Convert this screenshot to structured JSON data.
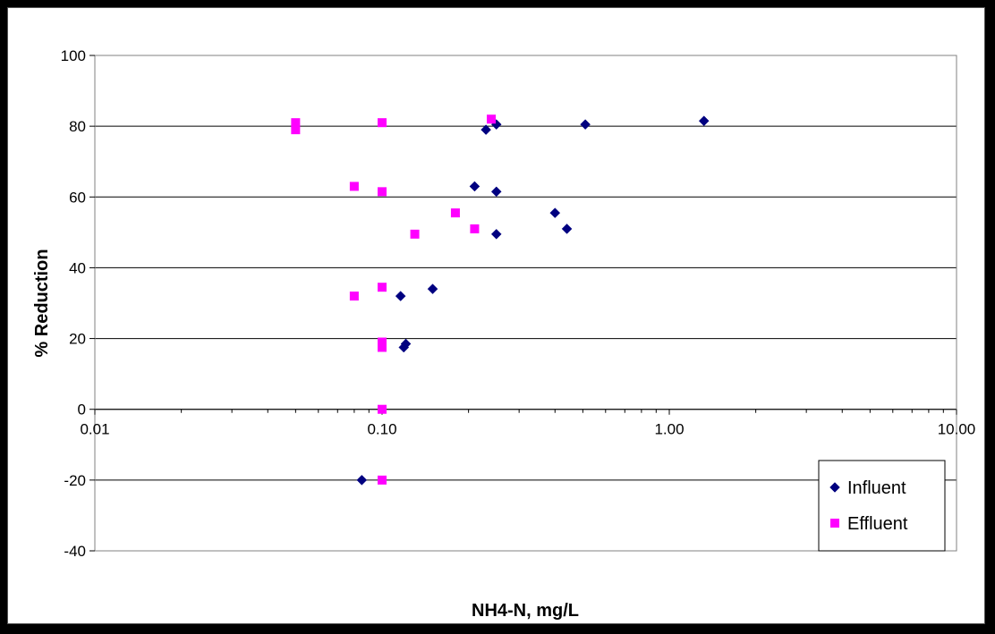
{
  "chart_data": {
    "type": "scatter",
    "xlabel": "NH4-N, mg/L",
    "ylabel": "% Reduction",
    "x_scale": "log",
    "xlim": [
      0.01,
      10
    ],
    "ylim": [
      -40,
      100
    ],
    "x_ticks": [
      0.01,
      0.1,
      1,
      10
    ],
    "x_tick_labels": [
      "0.01",
      "0.10",
      "1.00",
      "10.00"
    ],
    "y_ticks": [
      100,
      80,
      60,
      40,
      20,
      0,
      -20,
      -40
    ],
    "y_tick_labels": [
      "100",
      "80",
      "60",
      "40",
      "20",
      "0",
      "-20",
      "-40"
    ],
    "grid": "horizontal",
    "legend_position": "bottom-right",
    "series": [
      {
        "name": "Influent",
        "marker": "diamond",
        "color": "#000080",
        "points": [
          [
            1.32,
            81.5
          ],
          [
            0.51,
            80.5
          ],
          [
            0.25,
            80.5
          ],
          [
            0.23,
            79
          ],
          [
            0.21,
            63
          ],
          [
            0.25,
            61.5
          ],
          [
            0.4,
            55.5
          ],
          [
            0.44,
            51
          ],
          [
            0.25,
            49.5
          ],
          [
            0.15,
            34
          ],
          [
            0.116,
            32
          ],
          [
            0.121,
            18.5
          ],
          [
            0.119,
            17.5
          ],
          [
            0.085,
            -20
          ]
        ]
      },
      {
        "name": "Effluent",
        "marker": "square",
        "color": "#FF00FF",
        "points": [
          [
            0.05,
            81
          ],
          [
            0.05,
            79
          ],
          [
            0.1,
            81
          ],
          [
            0.24,
            82
          ],
          [
            0.08,
            63
          ],
          [
            0.1,
            61.5
          ],
          [
            0.18,
            55.5
          ],
          [
            0.21,
            51
          ],
          [
            0.13,
            49.5
          ],
          [
            0.08,
            32
          ],
          [
            0.1,
            34.5
          ],
          [
            0.1,
            19
          ],
          [
            0.1,
            17.5
          ],
          [
            0.1,
            0
          ],
          [
            0.1,
            -20
          ]
        ]
      }
    ]
  }
}
